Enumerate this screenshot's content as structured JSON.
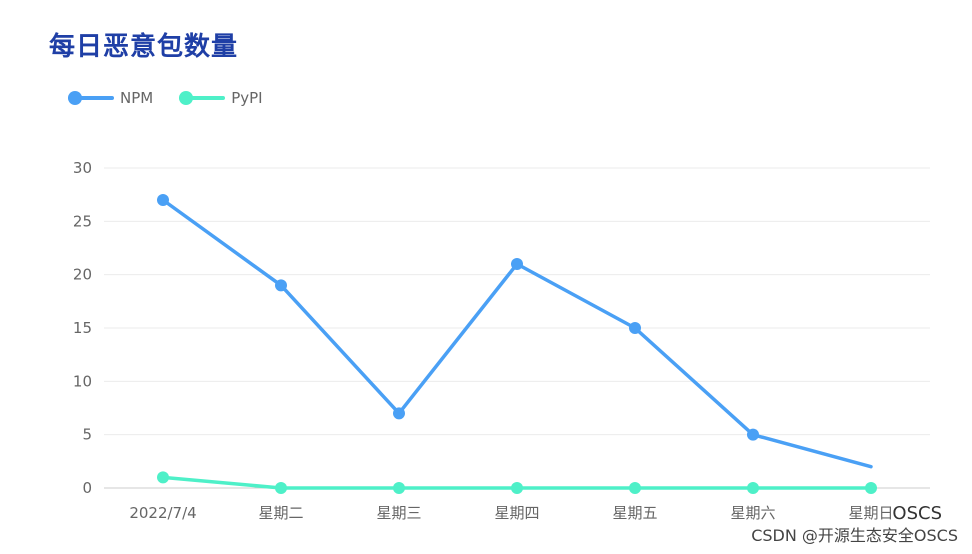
{
  "page_title": "每日恶意包数量",
  "watermark": {
    "top": "OSCS",
    "bottom": "CSDN @开源生态安全OSCS"
  },
  "legend": [
    {
      "name": "NPM",
      "color": "#4aa0f5"
    },
    {
      "name": "PyPI",
      "color": "#4ef0c8"
    }
  ],
  "chart_data": {
    "type": "line",
    "title": "每日恶意包数量",
    "categories": [
      "2022/7/4",
      "星期二",
      "星期三",
      "星期四",
      "星期五",
      "星期六",
      "星期日"
    ],
    "series": [
      {
        "name": "NPM",
        "values": [
          27,
          19,
          7,
          21,
          15,
          5,
          2
        ],
        "color": "#4aa0f5"
      },
      {
        "name": "PyPI",
        "values": [
          1,
          0,
          0,
          0,
          0,
          0,
          0
        ],
        "color": "#4ef0c8"
      }
    ],
    "yticks": [
      0,
      5,
      10,
      15,
      20,
      25,
      30
    ],
    "ylim": [
      0,
      30
    ],
    "grid": true,
    "legend_position": "top-left"
  }
}
